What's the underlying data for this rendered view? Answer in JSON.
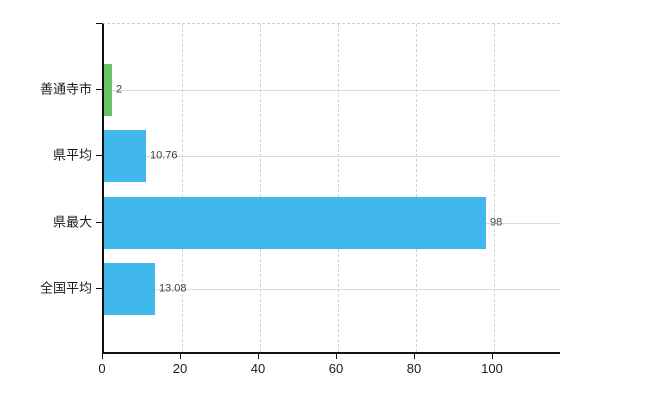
{
  "chart_data": {
    "type": "bar",
    "orientation": "horizontal",
    "title": "",
    "categories": [
      "善通寺市",
      "県平均",
      "県最大",
      "全国平均"
    ],
    "values": [
      2,
      10.76,
      98,
      13.08
    ],
    "value_labels": [
      "2",
      "10.76",
      "98",
      "13.08"
    ],
    "bar_colors": [
      "#69c168",
      "#41b8ec",
      "#41b8ec",
      "#41b8ec"
    ],
    "x_tick_labels": [
      "0",
      "20",
      "40",
      "60",
      "80",
      "100"
    ],
    "x_tick_values": [
      0,
      20,
      40,
      60,
      80,
      100
    ],
    "xlim": [
      0,
      117.4
    ],
    "grid": true,
    "legend": "none",
    "colors": {
      "bar_blue": "#41b8ec",
      "bar_green": "#69c168",
      "axis": "#111111",
      "vertical_gridline": "#d6d0d6",
      "horizontal_gridline": "#dadeda",
      "value_text": "#3f3f3f",
      "axis_text": "#1c1c1c",
      "background": "#ffffff"
    }
  }
}
